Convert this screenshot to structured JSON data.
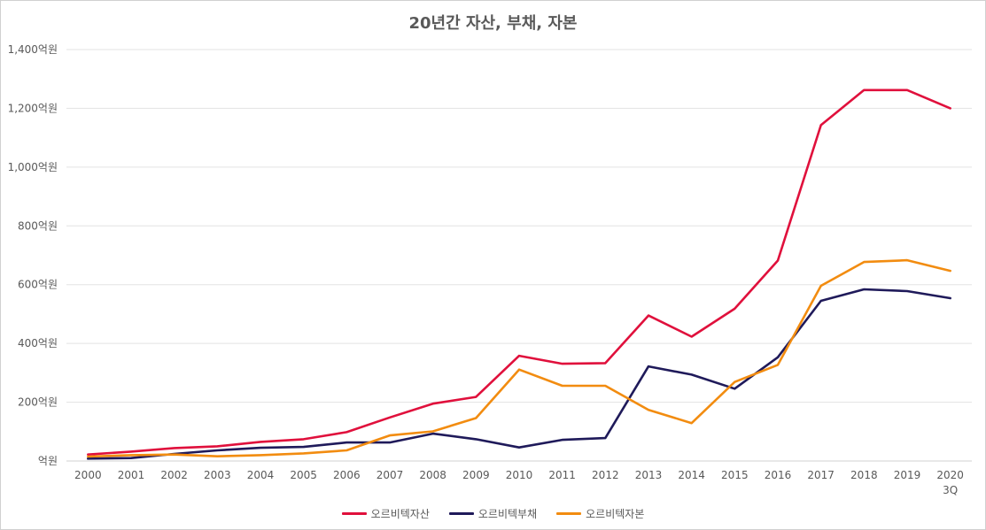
{
  "chart_data": {
    "type": "line",
    "title": "20년간 자산, 부채, 자본",
    "categories": [
      "2000",
      "2001",
      "2002",
      "2003",
      "2004",
      "2005",
      "2006",
      "2007",
      "2008",
      "2009",
      "2010",
      "2011",
      "2012",
      "2013",
      "2014",
      "2015",
      "2016",
      "2017",
      "2018",
      "2019",
      "2020\n3Q"
    ],
    "y_tick_values": [
      0,
      200,
      400,
      600,
      800,
      1000,
      1200,
      1400
    ],
    "y_tick_labels": [
      "억원",
      "200억원",
      "400억원",
      "600억원",
      "800억원",
      "1,000억원",
      "1,200억원",
      "1,400억원"
    ],
    "ylim": [
      0,
      1400
    ],
    "grid": true,
    "legend_position": "bottom",
    "series": [
      {
        "name": "오르비텍자산",
        "color": "#e0103c",
        "values": [
          22,
          32,
          44,
          50,
          65,
          74,
          98,
          148,
          195,
          218,
          358,
          331,
          333,
          495,
          423,
          518,
          682,
          1143,
          1262,
          1262,
          1200
        ]
      },
      {
        "name": "오르비텍부채",
        "color": "#1f1a5a",
        "values": [
          8,
          10,
          24,
          36,
          45,
          48,
          63,
          63,
          93,
          74,
          46,
          72,
          78,
          322,
          294,
          246,
          353,
          545,
          584,
          578,
          554
        ]
      },
      {
        "name": "오르비텍자본",
        "color": "#f28c10",
        "values": [
          15,
          20,
          22,
          16,
          20,
          26,
          36,
          87,
          101,
          146,
          311,
          256,
          256,
          174,
          129,
          269,
          327,
          596,
          677,
          683,
          647
        ]
      }
    ]
  }
}
